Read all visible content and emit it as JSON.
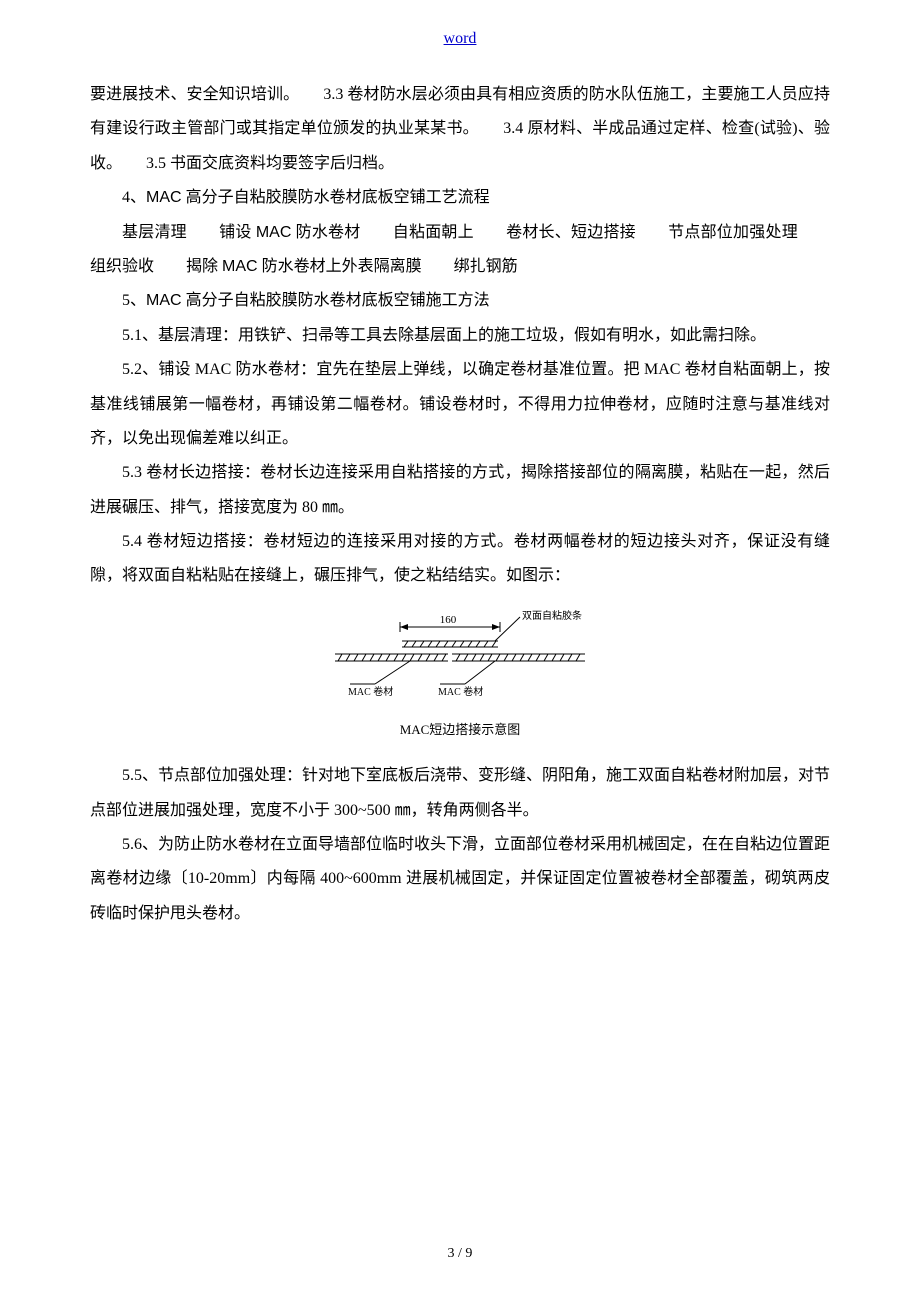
{
  "header": {
    "link_text": "word"
  },
  "paragraphs": {
    "p1": "要进展技术、安全知识培训。　　3.3 卷材防水层必须由具有相应资质的防水队伍施工，主要施工人员应持有建设行政主管部门或其指定单位颁发的执业某某书。　　3.4 原材料、半成品通过定样、检查(试验)、验收。　　3.5 书面交底资料均要签字后归档。",
    "p2_prefix": "4、",
    "p2_latin": "MAC",
    "p2_suffix": "高分子自粘胶膜防水卷材底板空铺工艺流程",
    "flow": {
      "items": [
        "基层清理",
        "铺设 MAC 防水卷材",
        "自粘面朝上",
        "卷材长、短边搭接",
        "节点部位加强处理",
        "组织验收",
        "揭除 MAC 防水卷材上外表隔离膜",
        "绑扎钢筋"
      ]
    },
    "p4_prefix": "5、",
    "p4_latin": "MAC",
    "p4_suffix": "高分子自粘胶膜防水卷材底板空铺施工方法",
    "p5": "5.1、基层清理：用铁铲、扫帚等工具去除基层面上的施工垃圾，假如有明水，如此需扫除。",
    "p6": "5.2、铺设 MAC 防水卷材：宜先在垫层上弹线，以确定卷材基准位置。把 MAC 卷材自粘面朝上，按基准线铺展第一幅卷材，再铺设第二幅卷材。铺设卷材时，不得用力拉伸卷材，应随时注意与基准线对齐，以免出现偏差难以纠正。",
    "p7": "5.3 卷材长边搭接：卷材长边连接采用自粘搭接的方式，揭除搭接部位的隔离膜，粘贴在一起，然后进展碾压、排气，搭接宽度为 80 ㎜。",
    "p8": "5.4 卷材短边搭接：卷材短边的连接采用对接的方式。卷材两幅卷材的短边接头对齐，保证没有缝隙，将双面自粘粘贴在接缝上，碾压排气，使之粘结结实。如图示：",
    "p9": "5.5、节点部位加强处理：针对地下室底板后浇带、变形缝、阴阳角，施工双面自粘卷材附加层，对节点部位进展加强处理，宽度不小于 300~500 ㎜，转角两侧各半。",
    "p10": "5.6、为防止防水卷材在立面导墙部位临时收头下滑，立面部位卷材采用机械固定，在在自粘边位置距离卷材边缘〔10-20mm〕内每隔 400~600mm 进展机械固定，并保证固定位置被卷材全部覆盖，砌筑两皮砖临时保护甩头卷材。"
  },
  "diagram": {
    "dimension": "160",
    "label_tape": "双面自粘胶条",
    "label_left": "MAC 卷材",
    "label_right": "MAC 卷材",
    "caption": "MAC短边搭接示意图",
    "colors": {
      "line": "#000000",
      "text": "#000000"
    }
  },
  "footer": {
    "page_number": "3 / 9"
  }
}
